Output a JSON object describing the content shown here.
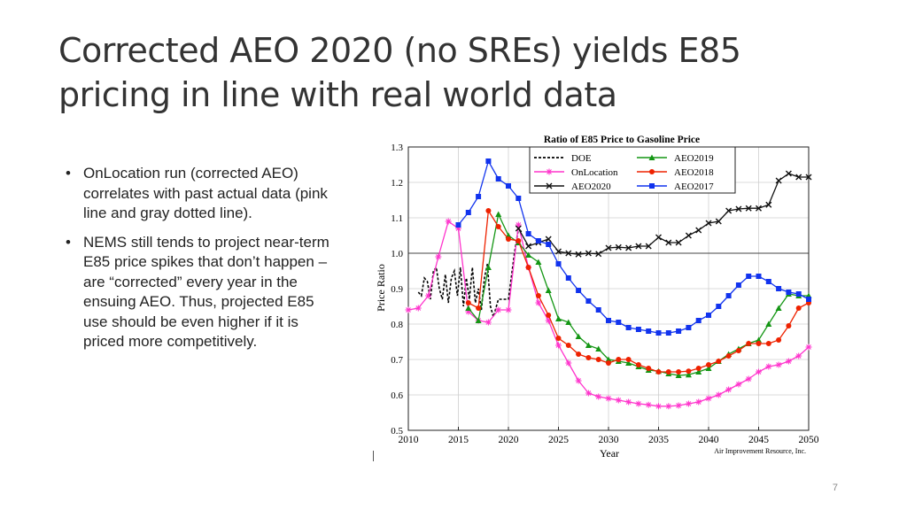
{
  "slide": {
    "title": "Corrected AEO 2020 (no SREs) yields E85 pricing in line with real world data",
    "bullets": [
      "OnLocation run (corrected AEO) correlates with past actual data (pink line and gray dotted line).",
      "NEMS still tends to project near-term E85 price spikes that don’t happen – are “corrected” every year in the ensuing AEO. Thus, projected E85 use should be even higher if it is priced more competitively."
    ],
    "page_number": "7"
  },
  "chart_data": {
    "type": "line",
    "title": "Ratio of E85 Price to Gasoline Price",
    "xlabel": "Year",
    "ylabel": "Price Ratio",
    "credit": "Air Improvement Resource, Inc.",
    "xlim": [
      2010,
      2050
    ],
    "ylim": [
      0.5,
      1.3
    ],
    "xticks": [
      2010,
      2015,
      2020,
      2025,
      2030,
      2035,
      2040,
      2045,
      2050
    ],
    "yticks": [
      "0.5",
      "0.6",
      "0.7",
      "0.8",
      "0.9",
      "1.0",
      "1.1",
      "1.2",
      "1.3"
    ],
    "reference_line": 1.0,
    "grid": true,
    "legend_position": "top-inside",
    "series": [
      {
        "name": "DOE",
        "color": "#000000",
        "style": "dashed",
        "marker": "none",
        "x": [
          2011.0,
          2011.3,
          2011.6,
          2011.9,
          2012.2,
          2012.5,
          2012.8,
          2013.1,
          2013.4,
          2013.7,
          2014.0,
          2014.3,
          2014.6,
          2014.9,
          2015.2,
          2015.5,
          2015.8,
          2016.1,
          2016.4,
          2016.7,
          2017.0,
          2017.3,
          2017.6,
          2017.9,
          2018.2,
          2018.5,
          2018.8,
          2019.0,
          2019.5,
          2020.0,
          2020.6,
          2021.0,
          2021.3
        ],
        "y": [
          0.89,
          0.88,
          0.93,
          0.92,
          0.87,
          0.95,
          0.96,
          0.9,
          0.87,
          0.94,
          0.86,
          0.93,
          0.95,
          0.88,
          0.96,
          0.85,
          0.93,
          0.87,
          0.96,
          0.86,
          0.9,
          0.84,
          0.93,
          0.97,
          0.85,
          0.82,
          0.85,
          0.87,
          0.87,
          0.87,
          1.0,
          1.07,
          1.06
        ]
      },
      {
        "name": "OnLocation",
        "color": "#ff33cc",
        "style": "solid",
        "marker": "star",
        "x": [
          2010,
          2011,
          2012,
          2013,
          2014,
          2015,
          2016,
          2017,
          2018,
          2019,
          2020,
          2021,
          2022,
          2023,
          2024,
          2025,
          2026,
          2027,
          2028,
          2029,
          2030,
          2031,
          2032,
          2033,
          2034,
          2035,
          2036,
          2037,
          2038,
          2039,
          2040,
          2041,
          2042,
          2043,
          2044,
          2045,
          2046,
          2047,
          2048,
          2049,
          2050
        ],
        "y": [
          0.84,
          0.845,
          0.88,
          0.99,
          1.09,
          1.07,
          0.835,
          0.81,
          0.805,
          0.84,
          0.84,
          1.08,
          0.96,
          0.86,
          0.81,
          0.74,
          0.69,
          0.64,
          0.605,
          0.595,
          0.59,
          0.585,
          0.58,
          0.575,
          0.572,
          0.568,
          0.568,
          0.57,
          0.575,
          0.58,
          0.59,
          0.6,
          0.615,
          0.63,
          0.645,
          0.665,
          0.68,
          0.685,
          0.695,
          0.71,
          0.735
        ]
      },
      {
        "name": "AEO2020",
        "color": "#111111",
        "style": "solid",
        "marker": "x",
        "x": [
          2021,
          2022,
          2023,
          2024,
          2025,
          2026,
          2027,
          2028,
          2029,
          2030,
          2031,
          2032,
          2033,
          2034,
          2035,
          2036,
          2037,
          2038,
          2039,
          2040,
          2041,
          2042,
          2043,
          2044,
          2045,
          2046,
          2047,
          2048,
          2049,
          2050
        ],
        "y": [
          1.07,
          1.02,
          1.03,
          1.04,
          1.005,
          1.0,
          0.997,
          1.0,
          0.998,
          1.015,
          1.017,
          1.015,
          1.02,
          1.02,
          1.045,
          1.03,
          1.03,
          1.05,
          1.065,
          1.085,
          1.09,
          1.12,
          1.125,
          1.127,
          1.127,
          1.137,
          1.205,
          1.225,
          1.215,
          1.215
        ]
      },
      {
        "name": "AEO2019",
        "color": "#149614",
        "style": "solid",
        "marker": "triangle",
        "x": [
          2016,
          2017,
          2018,
          2019,
          2020,
          2021,
          2022,
          2023,
          2024,
          2025,
          2026,
          2027,
          2028,
          2029,
          2030,
          2031,
          2032,
          2033,
          2034,
          2035,
          2036,
          2037,
          2038,
          2039,
          2040,
          2041,
          2042,
          2043,
          2044,
          2045,
          2046,
          2047,
          2048,
          2049,
          2050
        ],
        "y": [
          0.845,
          0.81,
          0.96,
          1.11,
          1.05,
          1.03,
          0.995,
          0.975,
          0.895,
          0.815,
          0.805,
          0.765,
          0.74,
          0.73,
          0.7,
          0.695,
          0.69,
          0.68,
          0.67,
          0.667,
          0.66,
          0.655,
          0.657,
          0.665,
          0.675,
          0.695,
          0.715,
          0.73,
          0.745,
          0.755,
          0.8,
          0.845,
          0.885,
          0.88,
          0.88
        ]
      },
      {
        "name": "AEO2018",
        "color": "#ee2200",
        "style": "solid",
        "marker": "circle",
        "x": [
          2016,
          2017,
          2018,
          2019,
          2020,
          2021,
          2022,
          2023,
          2024,
          2025,
          2026,
          2027,
          2028,
          2029,
          2030,
          2031,
          2032,
          2033,
          2034,
          2035,
          2036,
          2037,
          2038,
          2039,
          2040,
          2041,
          2042,
          2043,
          2044,
          2045,
          2046,
          2047,
          2048,
          2049,
          2050
        ],
        "y": [
          0.86,
          0.845,
          1.12,
          1.075,
          1.04,
          1.035,
          0.96,
          0.88,
          0.825,
          0.76,
          0.74,
          0.715,
          0.705,
          0.7,
          0.69,
          0.7,
          0.7,
          0.685,
          0.675,
          0.665,
          0.665,
          0.665,
          0.667,
          0.675,
          0.685,
          0.695,
          0.71,
          0.725,
          0.745,
          0.745,
          0.745,
          0.755,
          0.795,
          0.845,
          0.86
        ]
      },
      {
        "name": "AEO2017",
        "color": "#1133ee",
        "style": "solid",
        "marker": "square",
        "x": [
          2015,
          2016,
          2017,
          2018,
          2019,
          2020,
          2021,
          2022,
          2023,
          2024,
          2025,
          2026,
          2027,
          2028,
          2029,
          2030,
          2031,
          2032,
          2033,
          2034,
          2035,
          2036,
          2037,
          2038,
          2039,
          2040,
          2041,
          2042,
          2043,
          2044,
          2045,
          2046,
          2047,
          2048,
          2049,
          2050
        ],
        "y": [
          1.08,
          1.115,
          1.16,
          1.26,
          1.21,
          1.19,
          1.155,
          1.055,
          1.035,
          1.025,
          0.97,
          0.93,
          0.895,
          0.865,
          0.84,
          0.81,
          0.805,
          0.79,
          0.785,
          0.78,
          0.775,
          0.775,
          0.78,
          0.79,
          0.81,
          0.825,
          0.85,
          0.88,
          0.91,
          0.935,
          0.935,
          0.92,
          0.9,
          0.89,
          0.885,
          0.87
        ]
      }
    ]
  }
}
